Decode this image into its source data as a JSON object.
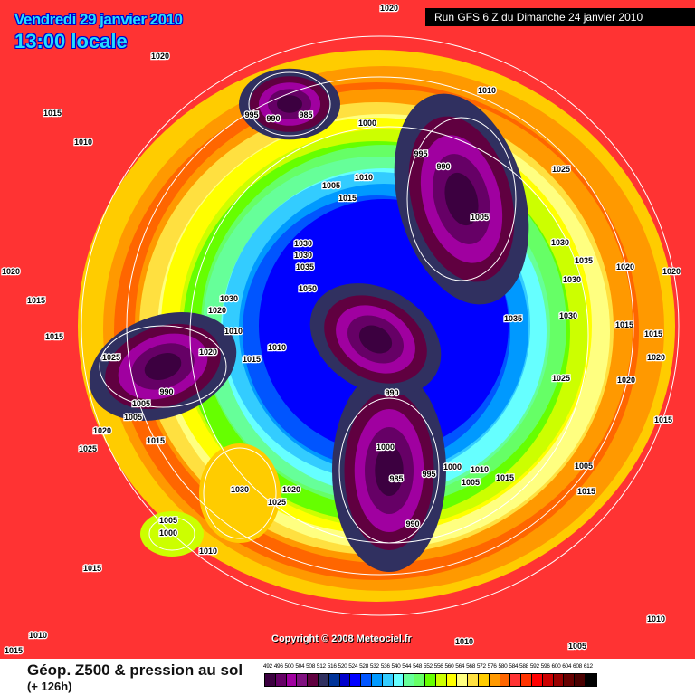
{
  "header": {
    "date": "Vendredi 29 janvier 2010",
    "time": "13:00 locale",
    "run": "Run GFS 6 Z du Dimanche 24 janvier 2010"
  },
  "copyright": "Copyright © 2008 Meteociel.fr",
  "footer": {
    "title": "Géop. Z500 & pression au sol",
    "subtitle": "(+ 126h)"
  },
  "legend": {
    "labels": [
      "492",
      "496",
      "500",
      "504",
      "508",
      "512",
      "516",
      "520",
      "524",
      "528",
      "532",
      "536",
      "540",
      "544",
      "548",
      "552",
      "556",
      "560",
      "564",
      "568",
      "572",
      "576",
      "580",
      "584",
      "588",
      "592",
      "596",
      "600",
      "604",
      "608",
      "612"
    ],
    "colors": [
      "#3c0040",
      "#660066",
      "#a000a0",
      "#801080",
      "#600040",
      "#303060",
      "#003399",
      "#0000cc",
      "#0000ff",
      "#0055ff",
      "#0099ff",
      "#33ccff",
      "#66ffff",
      "#66ff99",
      "#66ff66",
      "#66ff00",
      "#ccff00",
      "#ffff00",
      "#ffff80",
      "#ffe040",
      "#ffcc00",
      "#ff9900",
      "#ff6600",
      "#ff3333",
      "#ff3300",
      "#ff0000",
      "#cc0000",
      "#990000",
      "#660000",
      "#4a0000",
      "#000000"
    ]
  },
  "pressure_labels": [
    "1020",
    "1020",
    "1015",
    "995",
    "990",
    "985",
    "1000",
    "1010",
    "995",
    "990",
    "1005",
    "1005",
    "1015",
    "1010",
    "1025",
    "1030",
    "1030",
    "1035",
    "1050",
    "1030",
    "1020",
    "1010",
    "1010",
    "1015",
    "1020",
    "1025",
    "1005",
    "990",
    "1030",
    "1035",
    "1030",
    "1035",
    "1030",
    "1025",
    "1015",
    "1015",
    "1020",
    "1020",
    "1020",
    "1020",
    "1015",
    "1015",
    "1015",
    "1015",
    "990",
    "1000",
    "985",
    "995",
    "1000",
    "1005",
    "1010",
    "1015",
    "990",
    "1020",
    "1015",
    "1030",
    "1020",
    "1025",
    "1005",
    "1000",
    "1010",
    "1015",
    "1025",
    "1020",
    "1005",
    "1015",
    "1010",
    "1010",
    "1010",
    "1005",
    "1005",
    "1010"
  ]
}
